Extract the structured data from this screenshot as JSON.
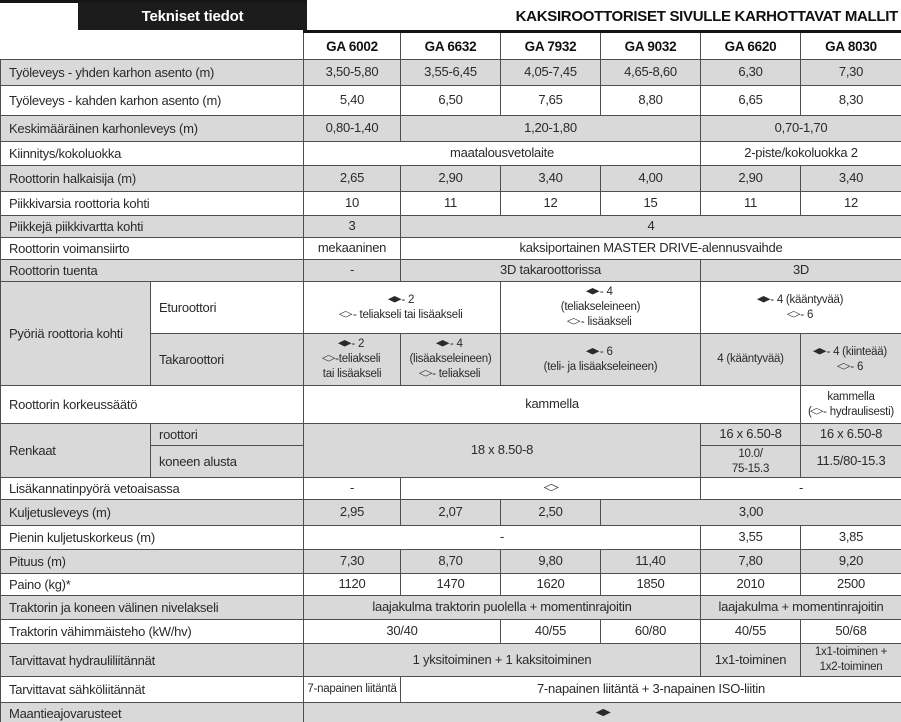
{
  "header": {
    "left_title": "Tekniset tiedot",
    "right_title": "KAKSIROOTTORISET SIVULLE KARHOTTAVAT MALLIT"
  },
  "colors": {
    "stripe": "#d9d9d9",
    "title_bar": "#1c1c1c",
    "border": "#4f4f4f"
  },
  "table": {
    "columns": [
      "GA 6002",
      "GA 6632",
      "GA 7932",
      "GA 9032",
      "GA 6620",
      "GA 8030"
    ],
    "rows": [
      {
        "label": "Työleveys - yhden karhon asento (m)",
        "shade": true,
        "h": 26,
        "cells": [
          "3,50-5,80",
          "3,55-6,45",
          "4,05-7,45",
          "4,65-8,60",
          "6,30",
          "7,30"
        ]
      },
      {
        "label": "Työleveys - kahden karhon asento (m)",
        "shade": false,
        "h": 30,
        "cells": [
          "5,40",
          "6,50",
          "7,65",
          "8,80",
          "6,65",
          "8,30"
        ]
      },
      {
        "label": "Keskimääräinen karhonleveys (m)",
        "shade": true,
        "h": 26,
        "cells": [
          {
            "t": "0,80-1,40"
          },
          {
            "t": "1,20-1,80",
            "c": 3
          },
          {
            "t": "0,70-1,70",
            "c": 2
          }
        ]
      },
      {
        "label": "Kiinnitys/kokoluokka",
        "shade": false,
        "h": 24,
        "cells": [
          {
            "t": "maatalousvetolaite",
            "c": 4
          },
          {
            "t": "2-piste/kokoluokka 2",
            "c": 2
          }
        ]
      },
      {
        "label": "Roottorin halkaisija (m)",
        "shade": true,
        "h": 26,
        "cells": [
          "2,65",
          "2,90",
          "3,40",
          "4,00",
          "2,90",
          "3,40"
        ]
      },
      {
        "label": "Piikkivarsia roottoria kohti",
        "shade": false,
        "h": 24,
        "cells": [
          "10",
          "11",
          "12",
          "15",
          "11",
          "12"
        ]
      },
      {
        "label": "Piikkejä piikkivartta kohti",
        "shade": true,
        "h": 22,
        "cells": [
          {
            "t": "3"
          },
          {
            "t": "4",
            "c": 5
          }
        ]
      },
      {
        "label": "Roottorin voimansiirto",
        "shade": false,
        "h": 22,
        "cells": [
          {
            "t": "mekaaninen"
          },
          {
            "t": "kaksiportainen MASTER DRIVE-alennusvaihde",
            "c": 5
          }
        ]
      },
      {
        "label": "Roottorin tuenta",
        "shade": true,
        "h": 22,
        "cells": [
          {
            "t": "-"
          },
          {
            "t": "3D takaroottorissa",
            "c": 3
          },
          {
            "t": "3D",
            "c": 2
          }
        ]
      },
      {
        "label": "Pyöriä roottoria kohti",
        "labelRowspan": 2,
        "labelShade": true,
        "sublabel": "Eturoottori",
        "shade": false,
        "h": 52,
        "cells": [
          {
            "t": "◆ - 2\n◇ - teliakseli tai lisäakseli",
            "c": 2,
            "s": 1
          },
          {
            "t": "◆ - 4\n(teliakseleineen)\n◇ - lisäakseli",
            "c": 2,
            "s": 1
          },
          {
            "t": "◆ - 4 (kääntyvää)\n◇ - 6",
            "c": 2,
            "s": 1
          }
        ]
      },
      {
        "sublabel": "Takaroottori",
        "shade": true,
        "h": 52,
        "cells": [
          {
            "t": "◆ - 2\n◇ -teliakseli\ntai lisäakseli",
            "s": 1
          },
          {
            "t": "◆ - 4\n(lisäakseleineen)\n◇ - teliakseli",
            "s": 1
          },
          {
            "t": "◆ - 6\n(teli- ja lisäakseleineen)",
            "c": 2,
            "s": 1
          },
          {
            "t": "4 (kääntyvää)",
            "s": 1
          },
          {
            "t": "◆ - 4 (kiinteää)\n◇ - 6",
            "s": 1
          }
        ]
      },
      {
        "label": "Roottorin korkeussäätö",
        "shade": false,
        "h": 38,
        "cells": [
          {
            "t": "kammella",
            "c": 5
          },
          {
            "t": "kammella\n(◇ - hydraulisesti)",
            "s": 1
          }
        ]
      },
      {
        "label": "Renkaat",
        "labelRowspan": 2,
        "labelShade": true,
        "sublabel": "roottori",
        "shade": true,
        "h": 22,
        "cells": [
          {
            "t": "18 x 8.50-8",
            "c": 4,
            "r": 2
          },
          {
            "t": "16 x 6.50-8"
          },
          {
            "t": "16 x 6.50-8"
          }
        ]
      },
      {
        "sublabel": "koneen alusta",
        "shade": true,
        "h": 30,
        "cells": [
          {
            "t": "10.0/\n75-15.3",
            "s": 1
          },
          {
            "t": "11.5/80-15.3"
          }
        ]
      },
      {
        "label": "Lisäkannatinpyörä vetoaisassa",
        "shade": false,
        "h": 22,
        "cells": [
          {
            "t": "-"
          },
          {
            "t": "◇",
            "c": 3
          },
          {
            "t": "-",
            "c": 2
          }
        ]
      },
      {
        "label": "Kuljetusleveys (m)",
        "shade": true,
        "h": 26,
        "cells": [
          {
            "t": "2,95"
          },
          {
            "t": "2,07"
          },
          {
            "t": "2,50"
          },
          {
            "t": "3,00",
            "c": 3
          }
        ]
      },
      {
        "label": "Pienin kuljetuskorkeus (m)",
        "shade": false,
        "h": 24,
        "cells": [
          {
            "t": "-",
            "c": 4
          },
          {
            "t": "3,55"
          },
          {
            "t": "3,85"
          }
        ]
      },
      {
        "label": "Pituus (m)",
        "shade": true,
        "h": 24,
        "cells": [
          "7,30",
          "8,70",
          "9,80",
          "11,40",
          "7,80",
          "9,20"
        ]
      },
      {
        "label": "Paino (kg)*",
        "shade": false,
        "h": 22,
        "cells": [
          "1120",
          "1470",
          "1620",
          "1850",
          "2010",
          "2500"
        ]
      },
      {
        "label": "Traktorin ja koneen välinen nivelakseli",
        "shade": true,
        "h": 24,
        "cells": [
          {
            "t": "laajakulma traktorin puolella + momentinrajoitin",
            "c": 4
          },
          {
            "t": "laajakulma + momentinrajoitin",
            "c": 2
          }
        ]
      },
      {
        "label": "Traktorin vähimmäisteho (kW/hv)",
        "shade": false,
        "h": 24,
        "cells": [
          {
            "t": "30/40",
            "c": 2
          },
          {
            "t": "40/55"
          },
          {
            "t": "60/80"
          },
          {
            "t": "40/55"
          },
          {
            "t": "50/68"
          }
        ]
      },
      {
        "label": "Tarvittavat hydrauliliitännät",
        "shade": true,
        "h": 30,
        "cells": [
          {
            "t": "1 yksitoiminen + 1 kaksitoiminen",
            "c": 4
          },
          {
            "t": "1x1-toiminen"
          },
          {
            "t": "1x1-toiminen +\n1x2-toiminen",
            "s": 1
          }
        ]
      },
      {
        "label": "Tarvittavat sähköliitännät",
        "shade": false,
        "h": 26,
        "cells": [
          {
            "t": "7-napainen liitäntä",
            "s": 1
          },
          {
            "t": "7-napainen liitäntä + 3-napainen ISO-liitin",
            "c": 5
          }
        ]
      },
      {
        "label": "Maantieajovarusteet",
        "shade": true,
        "h": 24,
        "cells": [
          {
            "t": "◆",
            "c": 6
          }
        ]
      }
    ]
  }
}
